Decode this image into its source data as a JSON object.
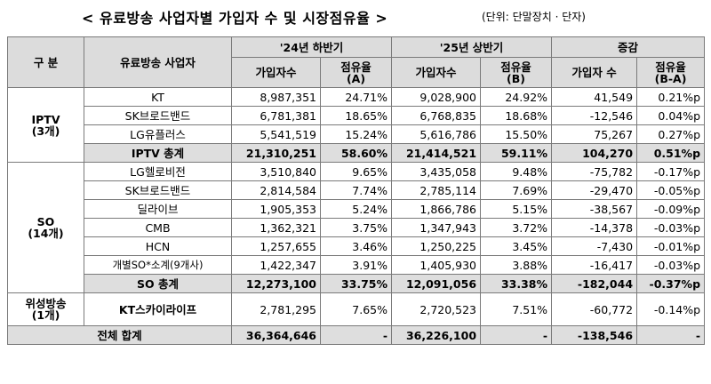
{
  "title": "< 유료방송 사업자별 가입자 수 및 시장점유율 >",
  "unit": "(단위: 단말장치 · 단자)",
  "header": {
    "category": "구 분",
    "operator": "유료방송 사업자",
    "period1": "'24년 하반기",
    "period2": "'25년 상반기",
    "change": "증감",
    "subscribers": "가입자수",
    "share_a_line1": "점유율",
    "share_a_line2": "(A)",
    "share_b_line1": "점유율",
    "share_b_line2": "(B)",
    "change_subscribers": "가입자 수",
    "change_share_line1": "점유율",
    "change_share_line2": "(B-A)"
  },
  "groups": [
    {
      "category_line1": "IPTV",
      "category_line2": "(3개)",
      "rows": [
        {
          "name": "KT",
          "subs_a": "8,987,351",
          "share_a": "24.71%",
          "subs_b": "9,028,900",
          "share_b": "24.92%",
          "diff_subs": "41,549",
          "diff_share": "0.21%p"
        },
        {
          "name": "SK브로드밴드",
          "subs_a": "6,781,381",
          "share_a": "18.65%",
          "subs_b": "6,768,835",
          "share_b": "18.68%",
          "diff_subs": "-12,546",
          "diff_share": "0.04%p"
        },
        {
          "name": "LG유플러스",
          "subs_a": "5,541,519",
          "share_a": "15.24%",
          "subs_b": "5,616,786",
          "share_b": "15.50%",
          "diff_subs": "75,267",
          "diff_share": "0.27%p"
        }
      ],
      "subtotal": {
        "name": "IPTV 총계",
        "subs_a": "21,310,251",
        "share_a": "58.60%",
        "subs_b": "21,414,521",
        "share_b": "59.11%",
        "diff_subs": "104,270",
        "diff_share": "0.51%p"
      }
    },
    {
      "category_line1": "SO",
      "category_line2": "(14개)",
      "rows": [
        {
          "name": "LG헬로비전",
          "subs_a": "3,510,840",
          "share_a": "9.65%",
          "subs_b": "3,435,058",
          "share_b": "9.48%",
          "diff_subs": "-75,782",
          "diff_share": "-0.17%p"
        },
        {
          "name": "SK브로드밴드",
          "subs_a": "2,814,584",
          "share_a": "7.74%",
          "subs_b": "2,785,114",
          "share_b": "7.69%",
          "diff_subs": "-29,470",
          "diff_share": "-0.05%p"
        },
        {
          "name": "딜라이브",
          "subs_a": "1,905,353",
          "share_a": "5.24%",
          "subs_b": "1,866,786",
          "share_b": "5.15%",
          "diff_subs": "-38,567",
          "diff_share": "-0.09%p"
        },
        {
          "name": "CMB",
          "subs_a": "1,362,321",
          "share_a": "3.75%",
          "subs_b": "1,347,943",
          "share_b": "3.72%",
          "diff_subs": "-14,378",
          "diff_share": "-0.03%p"
        },
        {
          "name": "HCN",
          "subs_a": "1,257,655",
          "share_a": "3.46%",
          "subs_b": "1,250,225",
          "share_b": "3.45%",
          "diff_subs": "-7,430",
          "diff_share": "-0.01%p"
        },
        {
          "name": "개별SO*소계(9개사)",
          "subs_a": "1,422,347",
          "share_a": "3.91%",
          "subs_b": "1,405,930",
          "share_b": "3.88%",
          "diff_subs": "-16,417",
          "diff_share": "-0.03%p"
        }
      ],
      "subtotal": {
        "name": "SO 총계",
        "subs_a": "12,273,100",
        "share_a": "33.75%",
        "subs_b": "12,091,056",
        "share_b": "33.38%",
        "diff_subs": "-182,044",
        "diff_share": "-0.37%p"
      }
    }
  ],
  "satellite": {
    "category_line1": "위성방송",
    "category_line2": "(1개)",
    "name": "KT스카이라이프",
    "subs_a": "2,781,295",
    "share_a": "7.65%",
    "subs_b": "2,720,523",
    "share_b": "7.51%",
    "diff_subs": "-60,772",
    "diff_share": "-0.14%p"
  },
  "grand_total": {
    "name": "전체 합계",
    "subs_a": "36,364,646",
    "share_a": "-",
    "subs_b": "36,226,100",
    "share_b": "-",
    "diff_subs": "-138,546",
    "diff_share": "-"
  }
}
